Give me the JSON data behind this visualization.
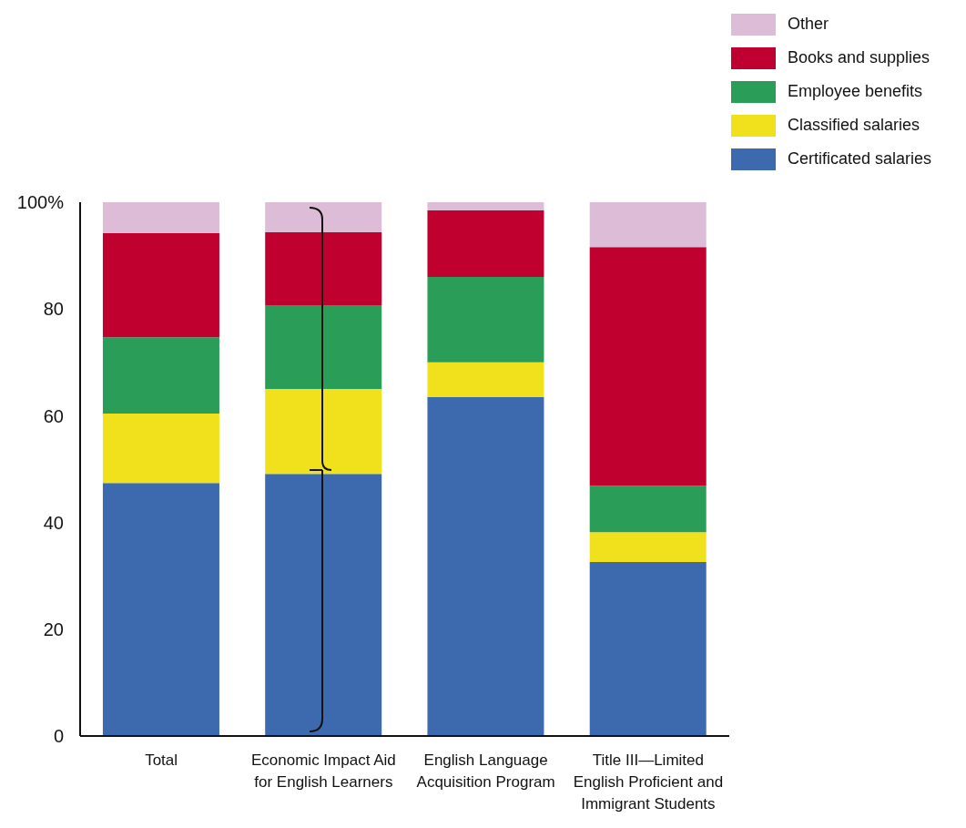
{
  "chart_data": {
    "type": "bar",
    "stacked": true,
    "categories": [
      "Total",
      "Economic Impact Aid for English Learners",
      "English Language Acquisition Program",
      "Title III—Limited English Proficient and Immigrant Students"
    ],
    "series": [
      {
        "name": "Certificated salaries",
        "color": "#3d6aae",
        "values": [
          47.4,
          49.1,
          63.5,
          32.6
        ]
      },
      {
        "name": "Classified salaries",
        "color": "#f0e11c",
        "values": [
          13.0,
          15.9,
          6.5,
          5.6
        ]
      },
      {
        "name": "Employee benefits",
        "color": "#2a9e58",
        "values": [
          14.3,
          15.7,
          16.0,
          8.7
        ]
      },
      {
        "name": "Books and supplies",
        "color": "#c0002f",
        "values": [
          19.5,
          13.7,
          12.5,
          44.7
        ]
      },
      {
        "name": "Other",
        "color": "#dcbcd6",
        "values": [
          5.8,
          5.6,
          1.5,
          8.4
        ]
      }
    ],
    "ylim": [
      0,
      100
    ],
    "yticks": [
      0,
      20,
      40,
      60,
      80,
      {
        "value": 100,
        "label": "100%"
      }
    ],
    "grid": false,
    "legend": "top right"
  }
}
